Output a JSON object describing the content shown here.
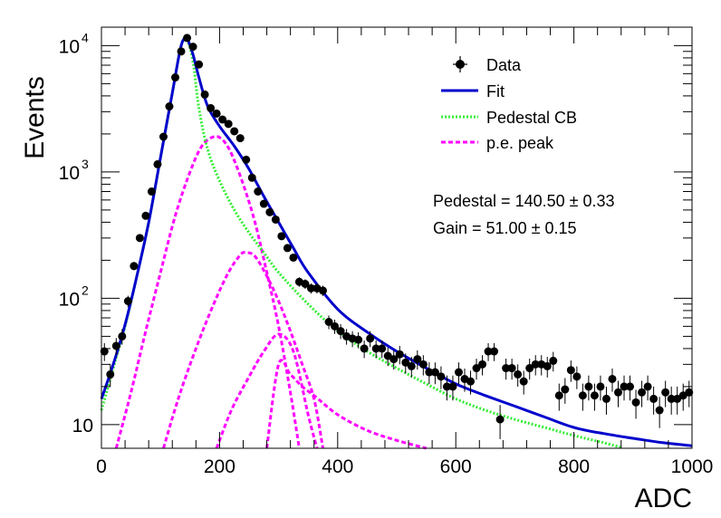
{
  "chart_data": {
    "type": "scatter",
    "xlabel": "ADC",
    "ylabel": "Events",
    "xlim": [
      0,
      1000
    ],
    "ylim": [
      6.5,
      14000
    ],
    "yscale": "log",
    "x_ticks": [
      "0",
      "200",
      "400",
      "600",
      "800",
      "1000"
    ],
    "y_ticks": [
      {
        "base": "10",
        "exp": ""
      },
      {
        "base": "10",
        "exp": "2"
      },
      {
        "base": "10",
        "exp": "3"
      },
      {
        "base": "10",
        "exp": "4"
      }
    ],
    "legend_position": "top-right",
    "legend": [
      "Data",
      "Fit",
      "Pedestal CB",
      "p.e. peak"
    ],
    "annotations": [
      "Pedestal = 140.50 ± 0.33",
      "Gain = 51.00 ± 0.15"
    ],
    "colors": {
      "data": "#000000",
      "fit": "#0000cc",
      "pedestal": "#33ee33",
      "pe_peak": "#ff00ff"
    },
    "data_points": [
      [
        5,
        38
      ],
      [
        15,
        25
      ],
      [
        25,
        42
      ],
      [
        35,
        50
      ],
      [
        45,
        95
      ],
      [
        55,
        180
      ],
      [
        65,
        300
      ],
      [
        75,
        450
      ],
      [
        85,
        700
      ],
      [
        95,
        1150
      ],
      [
        105,
        1900
      ],
      [
        115,
        3300
      ],
      [
        125,
        5600
      ],
      [
        135,
        9000
      ],
      [
        145,
        11500
      ],
      [
        155,
        9800
      ],
      [
        165,
        7100
      ],
      [
        175,
        4100
      ],
      [
        185,
        3200
      ],
      [
        195,
        2900
      ],
      [
        205,
        2600
      ],
      [
        215,
        2400
      ],
      [
        225,
        2100
      ],
      [
        235,
        1850
      ],
      [
        245,
        1250
      ],
      [
        255,
        900
      ],
      [
        265,
        700
      ],
      [
        275,
        560
      ],
      [
        285,
        480
      ],
      [
        295,
        420
      ],
      [
        305,
        310
      ],
      [
        315,
        250
      ],
      [
        325,
        210
      ],
      [
        335,
        135
      ],
      [
        345,
        130
      ],
      [
        355,
        120
      ],
      [
        365,
        120
      ],
      [
        375,
        115
      ],
      [
        385,
        65
      ],
      [
        395,
        60
      ],
      [
        405,
        55
      ],
      [
        415,
        50
      ],
      [
        425,
        48
      ],
      [
        435,
        47
      ],
      [
        445,
        40
      ],
      [
        455,
        48
      ],
      [
        465,
        40
      ],
      [
        475,
        40
      ],
      [
        485,
        35
      ],
      [
        495,
        33
      ],
      [
        505,
        36
      ],
      [
        515,
        31
      ],
      [
        525,
        29
      ],
      [
        535,
        33
      ],
      [
        545,
        30
      ],
      [
        555,
        26
      ],
      [
        565,
        26
      ],
      [
        575,
        24
      ],
      [
        585,
        20
      ],
      [
        595,
        20
      ],
      [
        605,
        26
      ],
      [
        615,
        23
      ],
      [
        625,
        22
      ],
      [
        635,
        28
      ],
      [
        645,
        30
      ],
      [
        655,
        38
      ],
      [
        665,
        38
      ],
      [
        675,
        11
      ],
      [
        685,
        28
      ],
      [
        695,
        28
      ],
      [
        705,
        25
      ],
      [
        715,
        22
      ],
      [
        725,
        28
      ],
      [
        735,
        30
      ],
      [
        745,
        30
      ],
      [
        755,
        29
      ],
      [
        765,
        32
      ],
      [
        775,
        17
      ],
      [
        785,
        19
      ],
      [
        795,
        27
      ],
      [
        805,
        24
      ],
      [
        815,
        17
      ],
      [
        825,
        20
      ],
      [
        835,
        17
      ],
      [
        845,
        20
      ],
      [
        855,
        16
      ],
      [
        865,
        23
      ],
      [
        875,
        18
      ],
      [
        885,
        20
      ],
      [
        895,
        20
      ],
      [
        905,
        15
      ],
      [
        915,
        18
      ],
      [
        925,
        20
      ],
      [
        935,
        16
      ],
      [
        945,
        13
      ],
      [
        955,
        18
      ],
      [
        965,
        16
      ],
      [
        975,
        16
      ],
      [
        985,
        17
      ],
      [
        995,
        18
      ]
    ],
    "curves": {
      "fit": [
        [
          0,
          16
        ],
        [
          20,
          30
        ],
        [
          40,
          62
        ],
        [
          60,
          150
        ],
        [
          80,
          400
        ],
        [
          100,
          1300
        ],
        [
          120,
          4200
        ],
        [
          135,
          10000
        ],
        [
          145,
          11200
        ],
        [
          155,
          8500
        ],
        [
          165,
          5600
        ],
        [
          180,
          3300
        ],
        [
          200,
          2300
        ],
        [
          225,
          1600
        ],
        [
          250,
          1050
        ],
        [
          275,
          640
        ],
        [
          300,
          400
        ],
        [
          325,
          250
        ],
        [
          350,
          160
        ],
        [
          400,
          82
        ],
        [
          450,
          54
        ],
        [
          500,
          38
        ],
        [
          550,
          28
        ],
        [
          600,
          21
        ],
        [
          650,
          17
        ],
        [
          700,
          14
        ],
        [
          750,
          11.5
        ],
        [
          800,
          9.5
        ],
        [
          850,
          8.5
        ],
        [
          900,
          7.8
        ],
        [
          950,
          7.2
        ],
        [
          1000,
          6.8
        ]
      ],
      "pedestal_cb": [
        [
          0,
          13
        ],
        [
          20,
          28
        ],
        [
          40,
          60
        ],
        [
          60,
          150
        ],
        [
          80,
          400
        ],
        [
          100,
          1300
        ],
        [
          120,
          4200
        ],
        [
          135,
          10000
        ],
        [
          145,
          11000
        ],
        [
          155,
          7500
        ],
        [
          165,
          3200
        ],
        [
          180,
          1500
        ],
        [
          200,
          850
        ],
        [
          225,
          500
        ],
        [
          250,
          330
        ],
        [
          275,
          230
        ],
        [
          300,
          160
        ],
        [
          350,
          90
        ],
        [
          400,
          55
        ],
        [
          450,
          38
        ],
        [
          500,
          28
        ],
        [
          550,
          21
        ],
        [
          600,
          16
        ],
        [
          650,
          13
        ],
        [
          700,
          11
        ],
        [
          750,
          9.5
        ],
        [
          800,
          8.2
        ],
        [
          850,
          7.2
        ],
        [
          880,
          6.6
        ]
      ],
      "pe_peaks": [
        [
          [
            25,
            6.5
          ],
          [
            50,
            18
          ],
          [
            75,
            55
          ],
          [
            100,
            160
          ],
          [
            125,
            450
          ],
          [
            150,
            1000
          ],
          [
            170,
            1600
          ],
          [
            190,
            1900
          ],
          [
            205,
            1800
          ],
          [
            220,
            1400
          ],
          [
            240,
            800
          ],
          [
            260,
            400
          ],
          [
            280,
            160
          ],
          [
            300,
            60
          ],
          [
            320,
            18
          ],
          [
            335,
            6.5
          ]
        ],
        [
          [
            105,
            6.5
          ],
          [
            130,
            16
          ],
          [
            160,
            40
          ],
          [
            190,
            90
          ],
          [
            215,
            160
          ],
          [
            235,
            220
          ],
          [
            245,
            230
          ],
          [
            260,
            215
          ],
          [
            280,
            150
          ],
          [
            300,
            95
          ],
          [
            320,
            55
          ],
          [
            340,
            30
          ],
          [
            360,
            16
          ],
          [
            375,
            6.5
          ]
        ],
        [
          [
            195,
            6.5
          ],
          [
            220,
            13
          ],
          [
            250,
            24
          ],
          [
            275,
            38
          ],
          [
            300,
            52
          ],
          [
            325,
            38
          ],
          [
            350,
            12
          ],
          [
            365,
            6.5
          ]
        ],
        [
          [
            280,
            6.5
          ],
          [
            300,
            30
          ],
          [
            320,
            25
          ],
          [
            340,
            20
          ],
          [
            360,
            17
          ],
          [
            400,
            12
          ],
          [
            450,
            9
          ],
          [
            500,
            7.5
          ],
          [
            550,
            6.5
          ]
        ]
      ]
    }
  }
}
